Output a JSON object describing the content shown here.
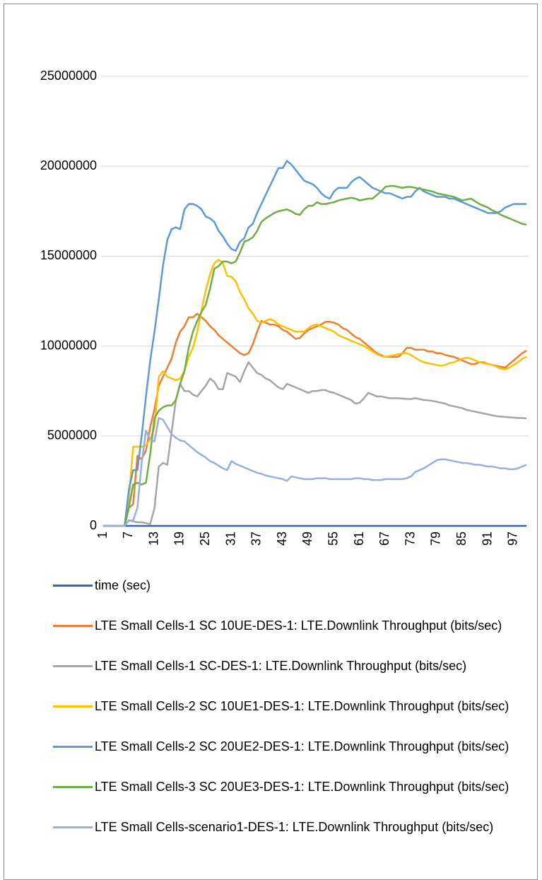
{
  "chart_data": {
    "type": "line",
    "categories": [
      1,
      null,
      null,
      null,
      null,
      null,
      7,
      null,
      null,
      null,
      null,
      null,
      13,
      null,
      null,
      null,
      null,
      null,
      19,
      null,
      null,
      null,
      null,
      null,
      25,
      null,
      null,
      null,
      null,
      null,
      31,
      null,
      null,
      null,
      null,
      null,
      37,
      null,
      null,
      null,
      null,
      null,
      43,
      null,
      null,
      null,
      null,
      null,
      49,
      null,
      null,
      null,
      null,
      null,
      55,
      null,
      null,
      null,
      null,
      null,
      61,
      null,
      null,
      null,
      null,
      null,
      67,
      null,
      null,
      null,
      null,
      null,
      73,
      null,
      null,
      null,
      null,
      null,
      79,
      null,
      null,
      null,
      null,
      null,
      85,
      null,
      null,
      null,
      null,
      null,
      91,
      null,
      null,
      null,
      null,
      null,
      97,
      null,
      null,
      null
    ],
    "ylim": [
      0,
      25000000
    ],
    "yticks": [
      0,
      5000000,
      10000000,
      15000000,
      20000000,
      25000000
    ],
    "grid": true,
    "legend": "bottom",
    "series": [
      {
        "name": "time (sec)",
        "color": "#3566b8",
        "values": [
          1,
          2,
          3,
          4,
          5,
          6,
          7,
          8,
          9,
          10,
          11,
          12,
          13,
          14,
          15,
          16,
          17,
          18,
          19,
          20,
          21,
          22,
          23,
          24,
          25,
          26,
          27,
          28,
          29,
          30,
          31,
          32,
          33,
          34,
          35,
          36,
          37,
          38,
          39,
          40,
          41,
          42,
          43,
          44,
          45,
          46,
          47,
          48,
          49,
          50,
          51,
          52,
          53,
          54,
          55,
          56,
          57,
          58,
          59,
          60,
          61,
          62,
          63,
          64,
          65,
          66,
          67,
          68,
          69,
          70,
          71,
          72,
          73,
          74,
          75,
          76,
          77,
          78,
          79,
          80,
          81,
          82,
          83,
          84,
          85,
          86,
          87,
          88,
          89,
          90,
          91,
          92,
          93,
          94,
          95,
          96,
          97,
          98,
          99,
          100
        ]
      },
      {
        "name": "LTE Small Cells-1 SC 10UE-DES-1: LTE.Downlink Throughput (bits/sec)",
        "color": "#ed7d31",
        "values": [
          0,
          0,
          0,
          0,
          0,
          0,
          1000000,
          1200000,
          3900000,
          3700000,
          4200000,
          5500000,
          6500000,
          7800000,
          8300000,
          8800000,
          9300000,
          10200000,
          10800000,
          11100000,
          11600000,
          11600000,
          11800000,
          11600000,
          11400000,
          11100000,
          10900000,
          10600000,
          10400000,
          10200000,
          10000000,
          9800000,
          9600000,
          9500000,
          9600000,
          10100000,
          10800000,
          11400000,
          11300000,
          11200000,
          11200000,
          11100000,
          10900000,
          10800000,
          10600000,
          10400000,
          10450000,
          10700000,
          10900000,
          11000000,
          11100000,
          11200000,
          11350000,
          11350000,
          11300000,
          11200000,
          11000000,
          10900000,
          10700000,
          10500000,
          10400000,
          10200000,
          10000000,
          9800000,
          9600000,
          9500000,
          9400000,
          9400000,
          9400000,
          9400000,
          9600000,
          9900000,
          9900000,
          9800000,
          9800000,
          9800000,
          9700000,
          9700000,
          9600000,
          9600000,
          9500000,
          9450000,
          9400000,
          9300000,
          9200000,
          9100000,
          9000000,
          9000000,
          9100000,
          9100000,
          9000000,
          8950000,
          8900000,
          8850000,
          8800000,
          9000000,
          9200000,
          9400000,
          9600000,
          9750000
        ]
      },
      {
        "name": "LTE Small Cells-1 SC-DES-1: LTE.Downlink Throughput (bits/sec)",
        "color": "#a5a5a5",
        "values": [
          0,
          0,
          0,
          0,
          0,
          0,
          300000,
          250000,
          200000,
          200000,
          150000,
          100000,
          1000000,
          3300000,
          3500000,
          3400000,
          5200000,
          7000000,
          7900000,
          7500000,
          7500000,
          7300000,
          7200000,
          7500000,
          7800000,
          8200000,
          8000000,
          7600000,
          7600000,
          8500000,
          8400000,
          8300000,
          8000000,
          8600000,
          9100000,
          8800000,
          8500000,
          8400000,
          8200000,
          8100000,
          7900000,
          7700000,
          7600000,
          7900000,
          7800000,
          7700000,
          7600000,
          7500000,
          7400000,
          7500000,
          7500000,
          7550000,
          7550000,
          7450000,
          7400000,
          7300000,
          7200000,
          7100000,
          7000000,
          6800000,
          6850000,
          7100000,
          7400000,
          7300000,
          7200000,
          7200000,
          7150000,
          7100000,
          7100000,
          7100000,
          7080000,
          7060000,
          7050000,
          7100000,
          7050000,
          7000000,
          6980000,
          6950000,
          6900000,
          6850000,
          6800000,
          6700000,
          6650000,
          6600000,
          6550000,
          6450000,
          6400000,
          6350000,
          6300000,
          6250000,
          6200000,
          6150000,
          6100000,
          6080000,
          6060000,
          6040000,
          6020000,
          6000000,
          6000000,
          5980000
        ]
      },
      {
        "name": "LTE Small Cells-2 SC 10UE1-DES-1: LTE.Downlink Throughput (bits/sec)",
        "color": "#ffc000",
        "values": [
          0,
          0,
          0,
          0,
          0,
          0,
          1500000,
          4400000,
          4400000,
          4400000,
          4500000,
          4800000,
          5500000,
          8300000,
          8600000,
          8300000,
          8200000,
          8100000,
          8200000,
          8600000,
          9400000,
          9900000,
          10800000,
          12000000,
          13100000,
          14000000,
          14600000,
          14800000,
          14600000,
          13900000,
          13850000,
          13600000,
          13000000,
          12600000,
          12100000,
          11800000,
          11400000,
          11300000,
          11400000,
          11500000,
          11400000,
          11200000,
          11100000,
          11000000,
          10900000,
          10800000,
          10800000,
          10800000,
          11000000,
          11150000,
          11200000,
          11100000,
          11000000,
          10900000,
          10800000,
          10600000,
          10500000,
          10400000,
          10300000,
          10200000,
          10100000,
          10000000,
          9850000,
          9700000,
          9550000,
          9450000,
          9400000,
          9450000,
          9500000,
          9550000,
          9600000,
          9600000,
          9500000,
          9350000,
          9200000,
          9100000,
          9050000,
          9000000,
          8950000,
          8900000,
          8950000,
          9050000,
          9100000,
          9200000,
          9300000,
          9350000,
          9300000,
          9200000,
          9100000,
          9050000,
          9000000,
          8950000,
          8850000,
          8750000,
          8700000,
          8800000,
          8950000,
          9100000,
          9300000,
          9400000
        ]
      },
      {
        "name": "LTE Small Cells-2 SC 20UE2-DES-1: LTE.Downlink Throughput (bits/sec)",
        "color": "#5b9bd5",
        "values": [
          0,
          0,
          0,
          0,
          0,
          0,
          2000000,
          3100000,
          3100000,
          5000000,
          7200000,
          9200000,
          10800000,
          12600000,
          14500000,
          15900000,
          16500000,
          16600000,
          16500000,
          17600000,
          17900000,
          17900000,
          17800000,
          17600000,
          17200000,
          17100000,
          16900000,
          16400000,
          16100000,
          15700000,
          15400000,
          15300000,
          15800000,
          16000000,
          16600000,
          16800000,
          17400000,
          17900000,
          18400000,
          18900000,
          19400000,
          19900000,
          19900000,
          20300000,
          20100000,
          19800000,
          19500000,
          19200000,
          19100000,
          19000000,
          18800000,
          18500000,
          18300000,
          18200000,
          18600000,
          18800000,
          18800000,
          18800000,
          19100000,
          19300000,
          19400000,
          19200000,
          19000000,
          18800000,
          18700000,
          18600000,
          18500000,
          18500000,
          18400000,
          18300000,
          18200000,
          18300000,
          18300000,
          18600000,
          18800000,
          18600000,
          18500000,
          18400000,
          18300000,
          18300000,
          18300000,
          18200000,
          18200000,
          18100000,
          18000000,
          17900000,
          17800000,
          17700000,
          17600000,
          17500000,
          17400000,
          17400000,
          17400000,
          17500000,
          17700000,
          17800000,
          17900000,
          17900000,
          17900000,
          17900000
        ]
      },
      {
        "name": "LTE Small Cells-3 SC 20UE3-DES-1: LTE.Downlink Throughput (bits/sec)",
        "color": "#70ad47",
        "values": [
          0,
          0,
          0,
          0,
          0,
          0,
          1000000,
          2300000,
          2400000,
          2300000,
          2400000,
          4000000,
          6000000,
          6400000,
          6600000,
          6700000,
          6700000,
          7000000,
          7900000,
          8600000,
          9900000,
          10800000,
          11400000,
          11900000,
          12300000,
          13200000,
          14300000,
          14450000,
          14700000,
          14700000,
          14600000,
          14700000,
          15200000,
          15800000,
          15900000,
          16050000,
          16400000,
          16900000,
          17100000,
          17250000,
          17400000,
          17500000,
          17550000,
          17600000,
          17500000,
          17350000,
          17300000,
          17600000,
          17800000,
          17800000,
          18000000,
          17900000,
          17900000,
          17950000,
          18000000,
          18100000,
          18150000,
          18200000,
          18250000,
          18200000,
          18100000,
          18150000,
          18200000,
          18200000,
          18400000,
          18600000,
          18850000,
          18900000,
          18900000,
          18850000,
          18800000,
          18850000,
          18850000,
          18800000,
          18750000,
          18700000,
          18650000,
          18600000,
          18500000,
          18450000,
          18400000,
          18350000,
          18300000,
          18200000,
          18100000,
          18150000,
          18200000,
          18050000,
          17900000,
          17800000,
          17700000,
          17550000,
          17450000,
          17300000,
          17200000,
          17100000,
          17000000,
          16900000,
          16800000,
          16750000
        ]
      },
      {
        "name": "LTE Small Cells-scenario1-DES-1: LTE.Downlink Throughput (bits/sec)",
        "color": "#9aaede",
        "values": [
          0,
          0,
          0,
          0,
          0,
          0,
          300000,
          300000,
          1000000,
          3500000,
          5300000,
          4800000,
          4700000,
          6000000,
          5900000,
          5500000,
          5100000,
          4900000,
          4750000,
          4700000,
          4500000,
          4300000,
          4100000,
          3950000,
          3800000,
          3600000,
          3500000,
          3350000,
          3200000,
          3100000,
          3600000,
          3450000,
          3350000,
          3250000,
          3150000,
          3050000,
          2950000,
          2900000,
          2800000,
          2750000,
          2700000,
          2650000,
          2600000,
          2500000,
          2750000,
          2700000,
          2650000,
          2600000,
          2600000,
          2600000,
          2650000,
          2650000,
          2650000,
          2600000,
          2600000,
          2600000,
          2600000,
          2600000,
          2600000,
          2650000,
          2650000,
          2600000,
          2600000,
          2550000,
          2550000,
          2550000,
          2600000,
          2600000,
          2600000,
          2600000,
          2600000,
          2650000,
          2750000,
          3000000,
          3100000,
          3200000,
          3350000,
          3500000,
          3650000,
          3700000,
          3700000,
          3650000,
          3600000,
          3550000,
          3500000,
          3500000,
          3450000,
          3400000,
          3400000,
          3350000,
          3300000,
          3300000,
          3250000,
          3200000,
          3200000,
          3150000,
          3150000,
          3200000,
          3300000,
          3400000
        ]
      }
    ]
  }
}
